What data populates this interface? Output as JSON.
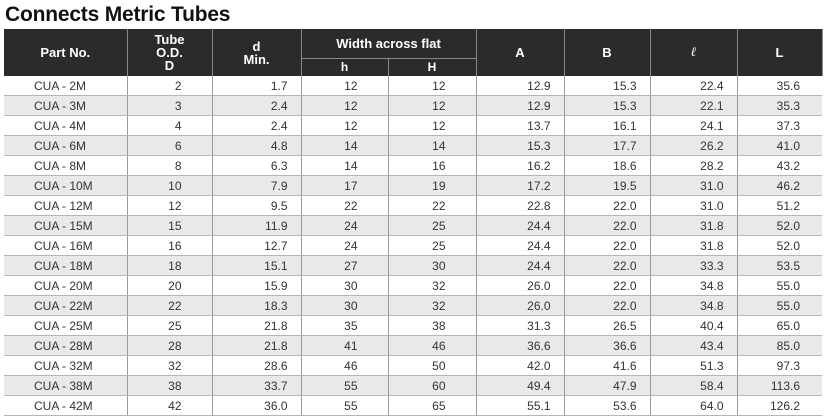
{
  "title": "Connects Metric Tubes",
  "headers": {
    "part_no": "Part No.",
    "tube_od": [
      "Tube",
      "O.D.",
      "D"
    ],
    "d_min": [
      "d",
      "Min."
    ],
    "width_across_flat": "Width across flat",
    "h": "h",
    "H": "H",
    "A": "A",
    "B": "B",
    "l": "ℓ",
    "L": "L"
  },
  "rows": [
    [
      "CUA -  2M",
      "2",
      "1.7",
      "12",
      "12",
      "12.9",
      "15.3",
      "22.4",
      "35.6"
    ],
    [
      "CUA -  3M",
      "3",
      "2.4",
      "12",
      "12",
      "12.9",
      "15.3",
      "22.1",
      "35.3"
    ],
    [
      "CUA -  4M",
      "4",
      "2.4",
      "12",
      "12",
      "13.7",
      "16.1",
      "24.1",
      "37.3"
    ],
    [
      "CUA -  6M",
      "6",
      "4.8",
      "14",
      "14",
      "15.3",
      "17.7",
      "26.2",
      "41.0"
    ],
    [
      "CUA -  8M",
      "8",
      "6.3",
      "14",
      "16",
      "16.2",
      "18.6",
      "28.2",
      "43.2"
    ],
    [
      "CUA - 10M",
      "10",
      "7.9",
      "17",
      "19",
      "17.2",
      "19.5",
      "31.0",
      "46.2"
    ],
    [
      "CUA - 12M",
      "12",
      "9.5",
      "22",
      "22",
      "22.8",
      "22.0",
      "31.0",
      "51.2"
    ],
    [
      "CUA - 15M",
      "15",
      "11.9",
      "24",
      "25",
      "24.4",
      "22.0",
      "31.8",
      "52.0"
    ],
    [
      "CUA - 16M",
      "16",
      "12.7",
      "24",
      "25",
      "24.4",
      "22.0",
      "31.8",
      "52.0"
    ],
    [
      "CUA - 18M",
      "18",
      "15.1",
      "27",
      "30",
      "24.4",
      "22.0",
      "33.3",
      "53.5"
    ],
    [
      "CUA - 20M",
      "20",
      "15.9",
      "30",
      "32",
      "26.0",
      "22.0",
      "34.8",
      "55.0"
    ],
    [
      "CUA - 22M",
      "22",
      "18.3",
      "30",
      "32",
      "26.0",
      "22.0",
      "34.8",
      "55.0"
    ],
    [
      "CUA - 25M",
      "25",
      "21.8",
      "35",
      "38",
      "31.3",
      "26.5",
      "40.4",
      "65.0"
    ],
    [
      "CUA - 28M",
      "28",
      "21.8",
      "41",
      "46",
      "36.6",
      "36.6",
      "43.4",
      "85.0"
    ],
    [
      "CUA - 32M",
      "32",
      "28.6",
      "46",
      "50",
      "42.0",
      "41.6",
      "51.3",
      "97.3"
    ],
    [
      "CUA - 38M",
      "38",
      "33.7",
      "55",
      "60",
      "49.4",
      "47.9",
      "58.4",
      "113.6"
    ],
    [
      "CUA - 42M",
      "42",
      "36.0",
      "55",
      "65",
      "55.1",
      "53.6",
      "64.0",
      "126.2"
    ]
  ]
}
